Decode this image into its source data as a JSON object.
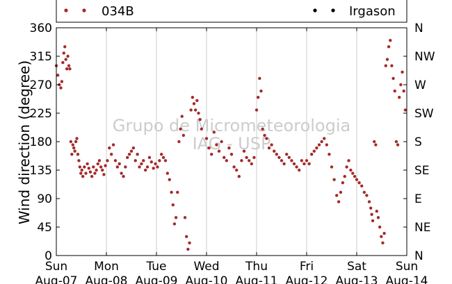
{
  "chart_data": {
    "type": "scatter",
    "ylabel": "Wind direction (degree)",
    "ylim": [
      0,
      360
    ],
    "yticks": [
      0,
      45,
      90,
      135,
      180,
      225,
      270,
      315,
      360
    ],
    "right_ticks": [
      {
        "value": 0,
        "label": "N"
      },
      {
        "value": 45,
        "label": "NE"
      },
      {
        "value": 90,
        "label": "E"
      },
      {
        "value": 135,
        "label": "SE"
      },
      {
        "value": 180,
        "label": "S"
      },
      {
        "value": 225,
        "label": "SW"
      },
      {
        "value": 270,
        "label": "W"
      },
      {
        "value": 315,
        "label": "NW"
      },
      {
        "value": 360,
        "label": "N"
      }
    ],
    "xlim": [
      0,
      7
    ],
    "xticks": [
      {
        "day": 0,
        "line1": "Sun",
        "line2": "Aug-07"
      },
      {
        "day": 1,
        "line1": "Mon",
        "line2": "Aug-08"
      },
      {
        "day": 2,
        "line1": "Tue",
        "line2": "Aug-09"
      },
      {
        "day": 3,
        "line1": "Wed",
        "line2": "Aug-10"
      },
      {
        "day": 4,
        "line1": "Thu",
        "line2": "Aug-11"
      },
      {
        "day": 5,
        "line1": "Fri",
        "line2": "Aug-12"
      },
      {
        "day": 6,
        "line1": "Sat",
        "line2": "Aug-13"
      },
      {
        "day": 7,
        "line1": "Sun",
        "line2": "Aug-14"
      }
    ],
    "grid": "vertical",
    "legend_position": "top",
    "watermark": [
      "Grupo de Micrometeorologia",
      "IAG - USP"
    ],
    "series": [
      {
        "name": "034B",
        "color": "#a52a2a",
        "points": [
          [
            0.0,
            300
          ],
          [
            0.03,
            285
          ],
          [
            0.06,
            270
          ],
          [
            0.09,
            265
          ],
          [
            0.11,
            275
          ],
          [
            0.13,
            305
          ],
          [
            0.15,
            320
          ],
          [
            0.17,
            330
          ],
          [
            0.19,
            310
          ],
          [
            0.21,
            295
          ],
          [
            0.23,
            315
          ],
          [
            0.25,
            300
          ],
          [
            0.27,
            295
          ],
          [
            0.29,
            180
          ],
          [
            0.31,
            160
          ],
          [
            0.33,
            175
          ],
          [
            0.35,
            170
          ],
          [
            0.37,
            165
          ],
          [
            0.39,
            180
          ],
          [
            0.41,
            185
          ],
          [
            0.43,
            160
          ],
          [
            0.45,
            150
          ],
          [
            0.47,
            140
          ],
          [
            0.49,
            130
          ],
          [
            0.51,
            135
          ],
          [
            0.53,
            125
          ],
          [
            0.56,
            140
          ],
          [
            0.59,
            130
          ],
          [
            0.62,
            145
          ],
          [
            0.65,
            138
          ],
          [
            0.68,
            132
          ],
          [
            0.71,
            125
          ],
          [
            0.74,
            140
          ],
          [
            0.77,
            130
          ],
          [
            0.8,
            135
          ],
          [
            0.83,
            145
          ],
          [
            0.86,
            150
          ],
          [
            0.89,
            140
          ],
          [
            0.92,
            135
          ],
          [
            0.95,
            128
          ],
          [
            0.98,
            142
          ],
          [
            1.02,
            150
          ],
          [
            1.06,
            170
          ],
          [
            1.1,
            160
          ],
          [
            1.14,
            175
          ],
          [
            1.18,
            150
          ],
          [
            1.22,
            140
          ],
          [
            1.26,
            145
          ],
          [
            1.3,
            130
          ],
          [
            1.34,
            125
          ],
          [
            1.38,
            140
          ],
          [
            1.42,
            155
          ],
          [
            1.46,
            160
          ],
          [
            1.5,
            165
          ],
          [
            1.54,
            170
          ],
          [
            1.58,
            150
          ],
          [
            1.62,
            160
          ],
          [
            1.66,
            140
          ],
          [
            1.7,
            145
          ],
          [
            1.74,
            150
          ],
          [
            1.78,
            135
          ],
          [
            1.82,
            140
          ],
          [
            1.86,
            155
          ],
          [
            1.9,
            148
          ],
          [
            1.94,
            138
          ],
          [
            1.98,
            145
          ],
          [
            2.02,
            140
          ],
          [
            2.06,
            150
          ],
          [
            2.1,
            160
          ],
          [
            2.14,
            155
          ],
          [
            2.18,
            150
          ],
          [
            2.22,
            130
          ],
          [
            2.26,
            120
          ],
          [
            2.3,
            100
          ],
          [
            2.33,
            80
          ],
          [
            2.36,
            50
          ],
          [
            2.39,
            60
          ],
          [
            2.42,
            100
          ],
          [
            2.45,
            180
          ],
          [
            2.48,
            200
          ],
          [
            2.51,
            220
          ],
          [
            2.54,
            190
          ],
          [
            2.57,
            60
          ],
          [
            2.6,
            30
          ],
          [
            2.63,
            10
          ],
          [
            2.66,
            20
          ],
          [
            2.69,
            230
          ],
          [
            2.72,
            250
          ],
          [
            2.75,
            240
          ],
          [
            2.78,
            230
          ],
          [
            2.81,
            245
          ],
          [
            2.84,
            225
          ],
          [
            2.87,
            215
          ],
          [
            2.9,
            200
          ],
          [
            3.0,
            185
          ],
          [
            3.05,
            170
          ],
          [
            3.1,
            160
          ],
          [
            3.15,
            195
          ],
          [
            3.2,
            175
          ],
          [
            3.25,
            165
          ],
          [
            3.3,
            180
          ],
          [
            3.35,
            155
          ],
          [
            3.4,
            150
          ],
          [
            3.45,
            170
          ],
          [
            3.5,
            160
          ],
          [
            3.55,
            140
          ],
          [
            3.6,
            135
          ],
          [
            3.65,
            125
          ],
          [
            3.7,
            150
          ],
          [
            3.75,
            165
          ],
          [
            3.8,
            155
          ],
          [
            3.85,
            150
          ],
          [
            3.9,
            145
          ],
          [
            3.95,
            155
          ],
          [
            4.0,
            230
          ],
          [
            4.03,
            250
          ],
          [
            4.06,
            280
          ],
          [
            4.09,
            260
          ],
          [
            4.12,
            200
          ],
          [
            4.16,
            190
          ],
          [
            4.2,
            185
          ],
          [
            4.25,
            170
          ],
          [
            4.3,
            175
          ],
          [
            4.35,
            165
          ],
          [
            4.4,
            160
          ],
          [
            4.45,
            155
          ],
          [
            4.5,
            150
          ],
          [
            4.55,
            145
          ],
          [
            4.6,
            160
          ],
          [
            4.65,
            155
          ],
          [
            4.7,
            150
          ],
          [
            4.75,
            145
          ],
          [
            4.8,
            140
          ],
          [
            4.85,
            135
          ],
          [
            4.9,
            150
          ],
          [
            4.95,
            145
          ],
          [
            5.0,
            150
          ],
          [
            5.05,
            145
          ],
          [
            5.1,
            160
          ],
          [
            5.15,
            165
          ],
          [
            5.2,
            170
          ],
          [
            5.25,
            175
          ],
          [
            5.3,
            180
          ],
          [
            5.35,
            185
          ],
          [
            5.4,
            175
          ],
          [
            5.45,
            160
          ],
          [
            5.5,
            140
          ],
          [
            5.55,
            120
          ],
          [
            5.6,
            95
          ],
          [
            5.64,
            85
          ],
          [
            5.68,
            100
          ],
          [
            5.72,
            115
          ],
          [
            5.76,
            125
          ],
          [
            5.8,
            140
          ],
          [
            5.84,
            150
          ],
          [
            5.88,
            135
          ],
          [
            5.92,
            130
          ],
          [
            5.96,
            125
          ],
          [
            6.0,
            120
          ],
          [
            6.05,
            115
          ],
          [
            6.1,
            110
          ],
          [
            6.15,
            100
          ],
          [
            6.2,
            95
          ],
          [
            6.25,
            85
          ],
          [
            6.28,
            75
          ],
          [
            6.3,
            65
          ],
          [
            6.32,
            55
          ],
          [
            6.35,
            180
          ],
          [
            6.38,
            175
          ],
          [
            6.4,
            70
          ],
          [
            6.43,
            60
          ],
          [
            6.46,
            45
          ],
          [
            6.49,
            30
          ],
          [
            6.52,
            20
          ],
          [
            6.55,
            35
          ],
          [
            6.58,
            300
          ],
          [
            6.61,
            310
          ],
          [
            6.64,
            330
          ],
          [
            6.67,
            340
          ],
          [
            6.7,
            300
          ],
          [
            6.73,
            280
          ],
          [
            6.76,
            260
          ],
          [
            6.79,
            180
          ],
          [
            6.82,
            175
          ],
          [
            6.85,
            250
          ],
          [
            6.88,
            270
          ],
          [
            6.91,
            290
          ],
          [
            6.94,
            260
          ],
          [
            6.97,
            230
          ]
        ]
      },
      {
        "name": "Irgason",
        "color": "#000000",
        "points": []
      }
    ]
  }
}
